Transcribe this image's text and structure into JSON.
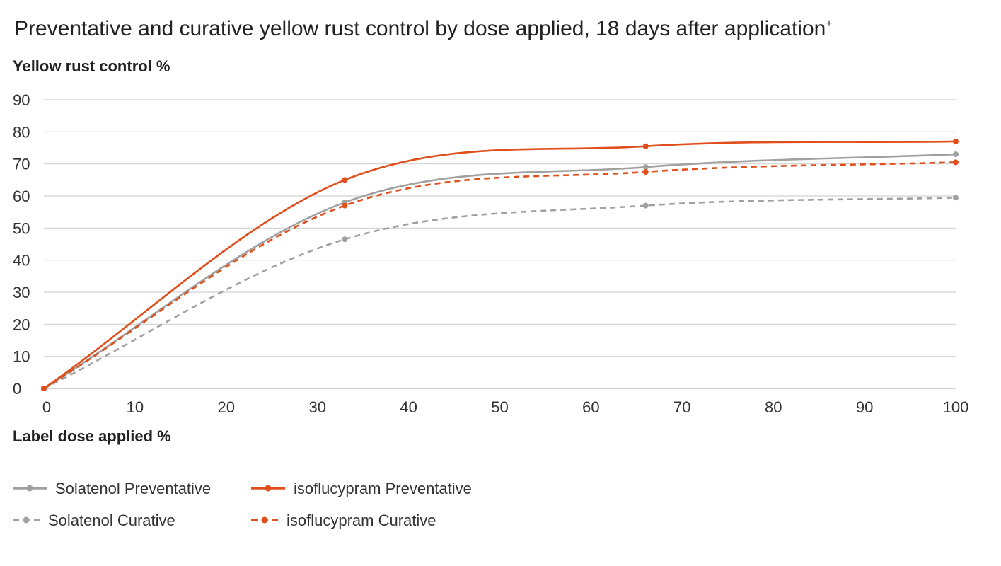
{
  "chart_data": {
    "type": "line",
    "title": "Preventative and curative yellow rust control by dose applied, 18 days after application",
    "title_superscript": "+",
    "ylabel": "Yellow rust control %",
    "xlabel": "Label dose applied %",
    "xlim": [
      0,
      100
    ],
    "ylim": [
      0,
      90
    ],
    "xticks": [
      "0",
      "10",
      "20",
      "30",
      "40",
      "50",
      "60",
      "70",
      "80",
      "90",
      "100"
    ],
    "yticks": [
      "0",
      "10",
      "20",
      "30",
      "40",
      "50",
      "60",
      "70",
      "80",
      "90"
    ],
    "grid": true,
    "legend_position": "bottom-left",
    "series": [
      {
        "name": "Solatenol Preventative",
        "color": "#a0a0a0",
        "dashed": false,
        "x": [
          0,
          33,
          66,
          100
        ],
        "values": [
          0,
          58,
          69,
          73
        ]
      },
      {
        "name": "isoflucypram Preventative",
        "color": "#e04e1b",
        "dashed": false,
        "x": [
          0,
          33,
          66,
          100
        ],
        "values": [
          0,
          65,
          75.5,
          77
        ]
      },
      {
        "name": "Solatenol Curative",
        "color": "#a0a0a0",
        "dashed": true,
        "x": [
          0,
          33,
          66,
          100
        ],
        "values": [
          0,
          46.5,
          57,
          59.5
        ]
      },
      {
        "name": "isoflucypram Curative",
        "color": "#e04e1b",
        "dashed": true,
        "x": [
          0,
          33,
          66,
          100
        ],
        "values": [
          0,
          57,
          67.5,
          70.5
        ]
      }
    ]
  }
}
